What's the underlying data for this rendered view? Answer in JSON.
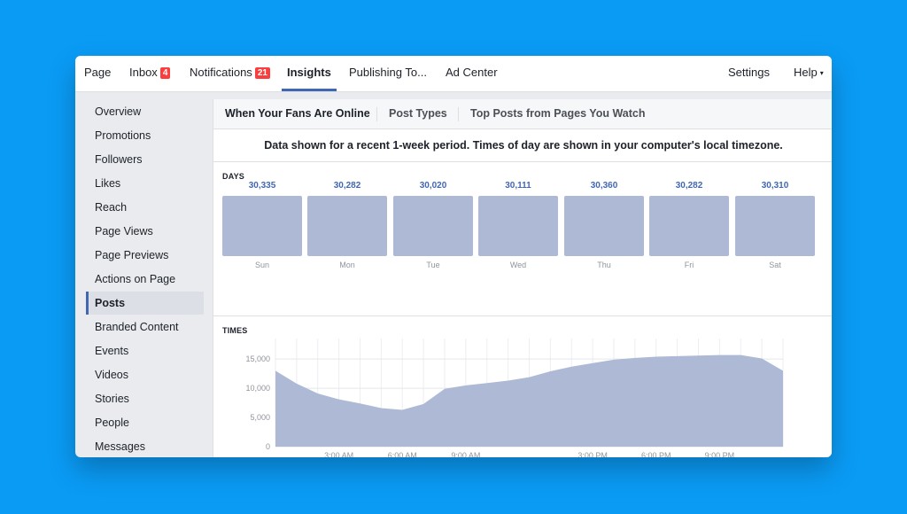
{
  "topnav": {
    "items": [
      {
        "label": "Page"
      },
      {
        "label": "Inbox",
        "badge": "4"
      },
      {
        "label": "Notifications",
        "badge": "21"
      },
      {
        "label": "Insights",
        "active": true
      },
      {
        "label": "Publishing To..."
      },
      {
        "label": "Ad Center"
      }
    ],
    "settings": "Settings",
    "help": "Help"
  },
  "sidebar": {
    "items": [
      {
        "label": "Overview"
      },
      {
        "label": "Promotions"
      },
      {
        "label": "Followers"
      },
      {
        "label": "Likes"
      },
      {
        "label": "Reach"
      },
      {
        "label": "Page Views"
      },
      {
        "label": "Page Previews"
      },
      {
        "label": "Actions on Page"
      },
      {
        "label": "Posts",
        "active": true
      },
      {
        "label": "Branded Content"
      },
      {
        "label": "Events"
      },
      {
        "label": "Videos"
      },
      {
        "label": "Stories"
      },
      {
        "label": "People"
      },
      {
        "label": "Messages"
      }
    ]
  },
  "tabs": [
    {
      "label": "When Your Fans Are Online",
      "active": true
    },
    {
      "label": "Post Types"
    },
    {
      "label": "Top Posts from Pages You Watch"
    }
  ],
  "notice": "Data shown for a recent 1-week period. Times of day are shown in your computer's local timezone.",
  "days": {
    "label": "DAYS",
    "items": [
      {
        "name": "Sun",
        "value": "30,335"
      },
      {
        "name": "Mon",
        "value": "30,282"
      },
      {
        "name": "Tue",
        "value": "30,020"
      },
      {
        "name": "Wed",
        "value": "30,111"
      },
      {
        "name": "Thu",
        "value": "30,360"
      },
      {
        "name": "Fri",
        "value": "30,282"
      },
      {
        "name": "Sat",
        "value": "30,310"
      }
    ]
  },
  "times": {
    "label": "TIMES",
    "chart_data": {
      "type": "area",
      "x": [
        0,
        1,
        2,
        3,
        4,
        5,
        6,
        7,
        8,
        9,
        10,
        11,
        12,
        13,
        14,
        15,
        16,
        17,
        18,
        19,
        20,
        21,
        22,
        23,
        24
      ],
      "values": [
        13000,
        10800,
        9100,
        8100,
        7400,
        6600,
        6300,
        7300,
        9900,
        10500,
        10900,
        11300,
        11900,
        12900,
        13700,
        14300,
        14900,
        15200,
        15400,
        15500,
        15600,
        15700,
        15700,
        15100,
        13000
      ],
      "x_tick_labels": [
        {
          "x": 3,
          "label": "3:00 AM"
        },
        {
          "x": 6,
          "label": "6:00 AM"
        },
        {
          "x": 9,
          "label": "9:00 AM"
        },
        {
          "x": 15,
          "label": "3:00 PM"
        },
        {
          "x": 18,
          "label": "6:00 PM"
        },
        {
          "x": 21,
          "label": "9:00 PM"
        }
      ],
      "y_ticks": [
        {
          "value": 0,
          "label": "0"
        },
        {
          "value": 5000,
          "label": "5,000"
        },
        {
          "value": 10000,
          "label": "10,000"
        },
        {
          "value": 15000,
          "label": "15,000"
        }
      ],
      "ylim": [
        0,
        17000
      ],
      "grid": true,
      "color": "#adb9d5"
    }
  },
  "colors": {
    "background": "#0a9bf5",
    "accent": "#4267b2",
    "badge": "#fa3e3e",
    "bar": "#adb9d5"
  }
}
